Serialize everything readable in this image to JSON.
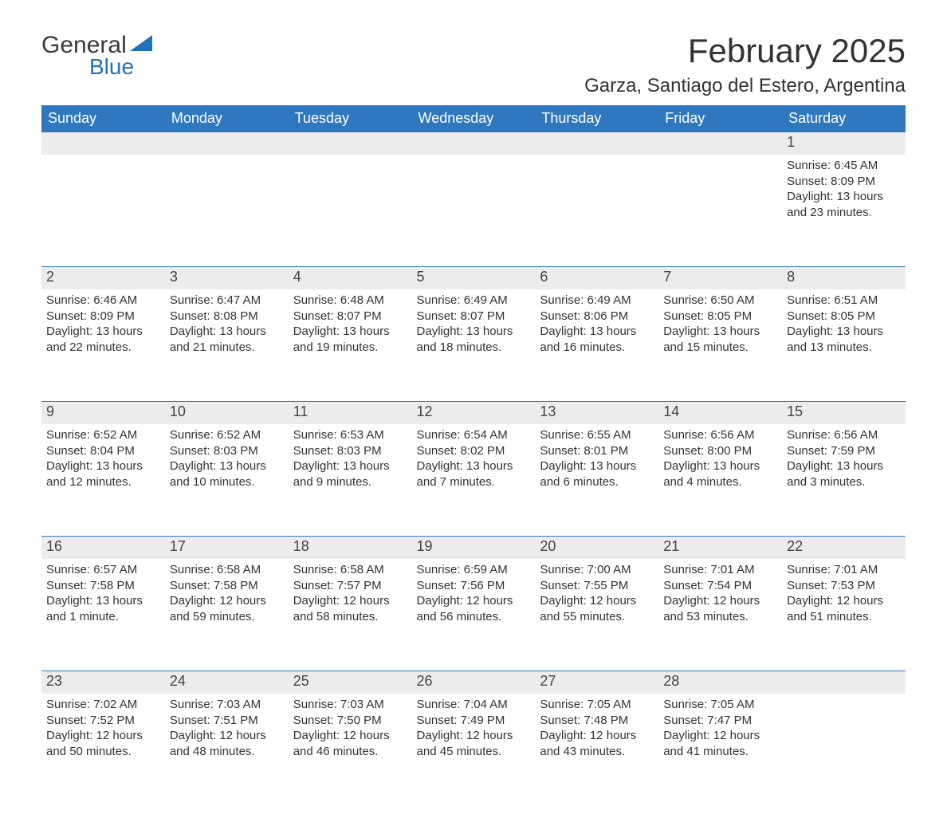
{
  "brand": {
    "word1": "General",
    "word2": "Blue",
    "triangle_color": "#1f73b7",
    "text_color_dark": "#3a3a3a",
    "text_color_blue": "#1f73b7"
  },
  "title": "February 2025",
  "location": "Garza, Santiago del Estero, Argentina",
  "header_bg": "#2f78bf",
  "header_text_color": "#ffffff",
  "daynum_bg": "#ececec",
  "daynum_border": "#2f78bf",
  "body_text_color": "#333333",
  "weekday_labels": [
    "Sunday",
    "Monday",
    "Tuesday",
    "Wednesday",
    "Thursday",
    "Friday",
    "Saturday"
  ],
  "weeks": [
    [
      {
        "num": "",
        "sunrise": "",
        "sunset": "",
        "daylight1": "",
        "daylight2": ""
      },
      {
        "num": "",
        "sunrise": "",
        "sunset": "",
        "daylight1": "",
        "daylight2": ""
      },
      {
        "num": "",
        "sunrise": "",
        "sunset": "",
        "daylight1": "",
        "daylight2": ""
      },
      {
        "num": "",
        "sunrise": "",
        "sunset": "",
        "daylight1": "",
        "daylight2": ""
      },
      {
        "num": "",
        "sunrise": "",
        "sunset": "",
        "daylight1": "",
        "daylight2": ""
      },
      {
        "num": "",
        "sunrise": "",
        "sunset": "",
        "daylight1": "",
        "daylight2": ""
      },
      {
        "num": "1",
        "sunrise": "Sunrise: 6:45 AM",
        "sunset": "Sunset: 8:09 PM",
        "daylight1": "Daylight: 13 hours",
        "daylight2": "and 23 minutes."
      }
    ],
    [
      {
        "num": "2",
        "sunrise": "Sunrise: 6:46 AM",
        "sunset": "Sunset: 8:09 PM",
        "daylight1": "Daylight: 13 hours",
        "daylight2": "and 22 minutes."
      },
      {
        "num": "3",
        "sunrise": "Sunrise: 6:47 AM",
        "sunset": "Sunset: 8:08 PM",
        "daylight1": "Daylight: 13 hours",
        "daylight2": "and 21 minutes."
      },
      {
        "num": "4",
        "sunrise": "Sunrise: 6:48 AM",
        "sunset": "Sunset: 8:07 PM",
        "daylight1": "Daylight: 13 hours",
        "daylight2": "and 19 minutes."
      },
      {
        "num": "5",
        "sunrise": "Sunrise: 6:49 AM",
        "sunset": "Sunset: 8:07 PM",
        "daylight1": "Daylight: 13 hours",
        "daylight2": "and 18 minutes."
      },
      {
        "num": "6",
        "sunrise": "Sunrise: 6:49 AM",
        "sunset": "Sunset: 8:06 PM",
        "daylight1": "Daylight: 13 hours",
        "daylight2": "and 16 minutes."
      },
      {
        "num": "7",
        "sunrise": "Sunrise: 6:50 AM",
        "sunset": "Sunset: 8:05 PM",
        "daylight1": "Daylight: 13 hours",
        "daylight2": "and 15 minutes."
      },
      {
        "num": "8",
        "sunrise": "Sunrise: 6:51 AM",
        "sunset": "Sunset: 8:05 PM",
        "daylight1": "Daylight: 13 hours",
        "daylight2": "and 13 minutes."
      }
    ],
    [
      {
        "num": "9",
        "sunrise": "Sunrise: 6:52 AM",
        "sunset": "Sunset: 8:04 PM",
        "daylight1": "Daylight: 13 hours",
        "daylight2": "and 12 minutes."
      },
      {
        "num": "10",
        "sunrise": "Sunrise: 6:52 AM",
        "sunset": "Sunset: 8:03 PM",
        "daylight1": "Daylight: 13 hours",
        "daylight2": "and 10 minutes."
      },
      {
        "num": "11",
        "sunrise": "Sunrise: 6:53 AM",
        "sunset": "Sunset: 8:03 PM",
        "daylight1": "Daylight: 13 hours",
        "daylight2": "and 9 minutes."
      },
      {
        "num": "12",
        "sunrise": "Sunrise: 6:54 AM",
        "sunset": "Sunset: 8:02 PM",
        "daylight1": "Daylight: 13 hours",
        "daylight2": "and 7 minutes."
      },
      {
        "num": "13",
        "sunrise": "Sunrise: 6:55 AM",
        "sunset": "Sunset: 8:01 PM",
        "daylight1": "Daylight: 13 hours",
        "daylight2": "and 6 minutes."
      },
      {
        "num": "14",
        "sunrise": "Sunrise: 6:56 AM",
        "sunset": "Sunset: 8:00 PM",
        "daylight1": "Daylight: 13 hours",
        "daylight2": "and 4 minutes."
      },
      {
        "num": "15",
        "sunrise": "Sunrise: 6:56 AM",
        "sunset": "Sunset: 7:59 PM",
        "daylight1": "Daylight: 13 hours",
        "daylight2": "and 3 minutes."
      }
    ],
    [
      {
        "num": "16",
        "sunrise": "Sunrise: 6:57 AM",
        "sunset": "Sunset: 7:58 PM",
        "daylight1": "Daylight: 13 hours",
        "daylight2": "and 1 minute."
      },
      {
        "num": "17",
        "sunrise": "Sunrise: 6:58 AM",
        "sunset": "Sunset: 7:58 PM",
        "daylight1": "Daylight: 12 hours",
        "daylight2": "and 59 minutes."
      },
      {
        "num": "18",
        "sunrise": "Sunrise: 6:58 AM",
        "sunset": "Sunset: 7:57 PM",
        "daylight1": "Daylight: 12 hours",
        "daylight2": "and 58 minutes."
      },
      {
        "num": "19",
        "sunrise": "Sunrise: 6:59 AM",
        "sunset": "Sunset: 7:56 PM",
        "daylight1": "Daylight: 12 hours",
        "daylight2": "and 56 minutes."
      },
      {
        "num": "20",
        "sunrise": "Sunrise: 7:00 AM",
        "sunset": "Sunset: 7:55 PM",
        "daylight1": "Daylight: 12 hours",
        "daylight2": "and 55 minutes."
      },
      {
        "num": "21",
        "sunrise": "Sunrise: 7:01 AM",
        "sunset": "Sunset: 7:54 PM",
        "daylight1": "Daylight: 12 hours",
        "daylight2": "and 53 minutes."
      },
      {
        "num": "22",
        "sunrise": "Sunrise: 7:01 AM",
        "sunset": "Sunset: 7:53 PM",
        "daylight1": "Daylight: 12 hours",
        "daylight2": "and 51 minutes."
      }
    ],
    [
      {
        "num": "23",
        "sunrise": "Sunrise: 7:02 AM",
        "sunset": "Sunset: 7:52 PM",
        "daylight1": "Daylight: 12 hours",
        "daylight2": "and 50 minutes."
      },
      {
        "num": "24",
        "sunrise": "Sunrise: 7:03 AM",
        "sunset": "Sunset: 7:51 PM",
        "daylight1": "Daylight: 12 hours",
        "daylight2": "and 48 minutes."
      },
      {
        "num": "25",
        "sunrise": "Sunrise: 7:03 AM",
        "sunset": "Sunset: 7:50 PM",
        "daylight1": "Daylight: 12 hours",
        "daylight2": "and 46 minutes."
      },
      {
        "num": "26",
        "sunrise": "Sunrise: 7:04 AM",
        "sunset": "Sunset: 7:49 PM",
        "daylight1": "Daylight: 12 hours",
        "daylight2": "and 45 minutes."
      },
      {
        "num": "27",
        "sunrise": "Sunrise: 7:05 AM",
        "sunset": "Sunset: 7:48 PM",
        "daylight1": "Daylight: 12 hours",
        "daylight2": "and 43 minutes."
      },
      {
        "num": "28",
        "sunrise": "Sunrise: 7:05 AM",
        "sunset": "Sunset: 7:47 PM",
        "daylight1": "Daylight: 12 hours",
        "daylight2": "and 41 minutes."
      },
      {
        "num": "",
        "sunrise": "",
        "sunset": "",
        "daylight1": "",
        "daylight2": ""
      }
    ]
  ]
}
